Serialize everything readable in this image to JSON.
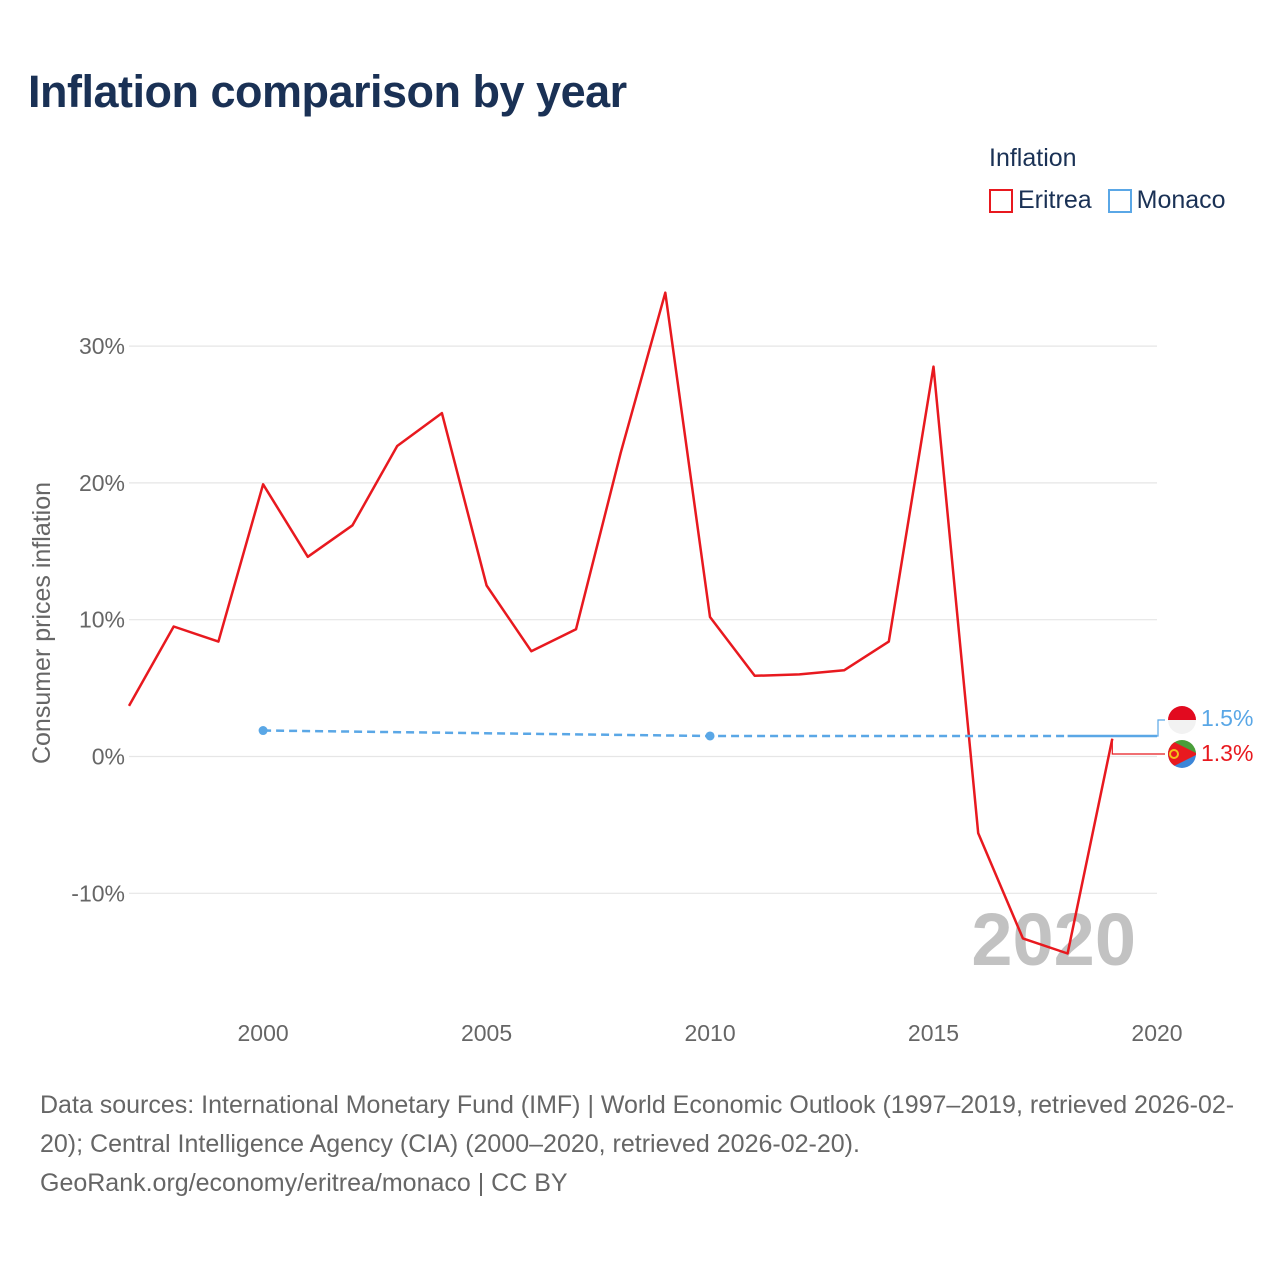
{
  "title": "Inflation comparison by year",
  "legend": {
    "title": "Inflation",
    "items": [
      {
        "name": "Eritrea",
        "color": "#e8191f"
      },
      {
        "name": "Monaco",
        "color": "#5aa7e6"
      }
    ]
  },
  "watermark_year": "2020",
  "end_labels": {
    "monaco": "1.5%",
    "eritrea": "1.3%"
  },
  "footer": {
    "sources": "Data sources: International Monetary Fund (IMF) | World Economic Outlook (1997–2019, retrieved 2026-02-20); Central Intelligence Agency (CIA) (2000–2020, retrieved 2026-02-20).",
    "credit": "GeoRank.org/economy/eritrea/monaco | CC BY"
  },
  "chart_data": {
    "type": "line",
    "title": "Inflation comparison by year",
    "xlabel": "",
    "ylabel": "Consumer prices inflation",
    "xlim": [
      1997,
      2020
    ],
    "ylim": [
      -16,
      34
    ],
    "x_ticks": [
      2000,
      2005,
      2010,
      2015,
      2020
    ],
    "y_ticks": [
      30,
      20,
      10,
      0,
      -10
    ],
    "y_tick_labels": [
      "30%",
      "20%",
      "10%",
      "0%",
      "-10%"
    ],
    "grid": true,
    "legend_position": "top-right",
    "series": [
      {
        "name": "Eritrea",
        "color": "#e8191f",
        "x": [
          1997,
          1998,
          1999,
          2000,
          2001,
          2002,
          2003,
          2004,
          2005,
          2006,
          2007,
          2008,
          2009,
          2010,
          2011,
          2012,
          2013,
          2014,
          2015,
          2016,
          2017,
          2018,
          2019
        ],
        "values": [
          3.7,
          9.5,
          8.4,
          19.9,
          14.6,
          16.9,
          22.7,
          25.1,
          12.5,
          7.7,
          9.3,
          22.2,
          33.9,
          10.2,
          5.9,
          6.0,
          6.3,
          8.4,
          28.5,
          -5.6,
          -13.3,
          -14.4,
          1.3
        ]
      },
      {
        "name": "Monaco",
        "color": "#5aa7e6",
        "x": [
          2000,
          2010,
          2018,
          2019,
          2020
        ],
        "values": [
          1.9,
          1.5,
          1.5,
          1.5,
          1.5
        ]
      }
    ]
  }
}
